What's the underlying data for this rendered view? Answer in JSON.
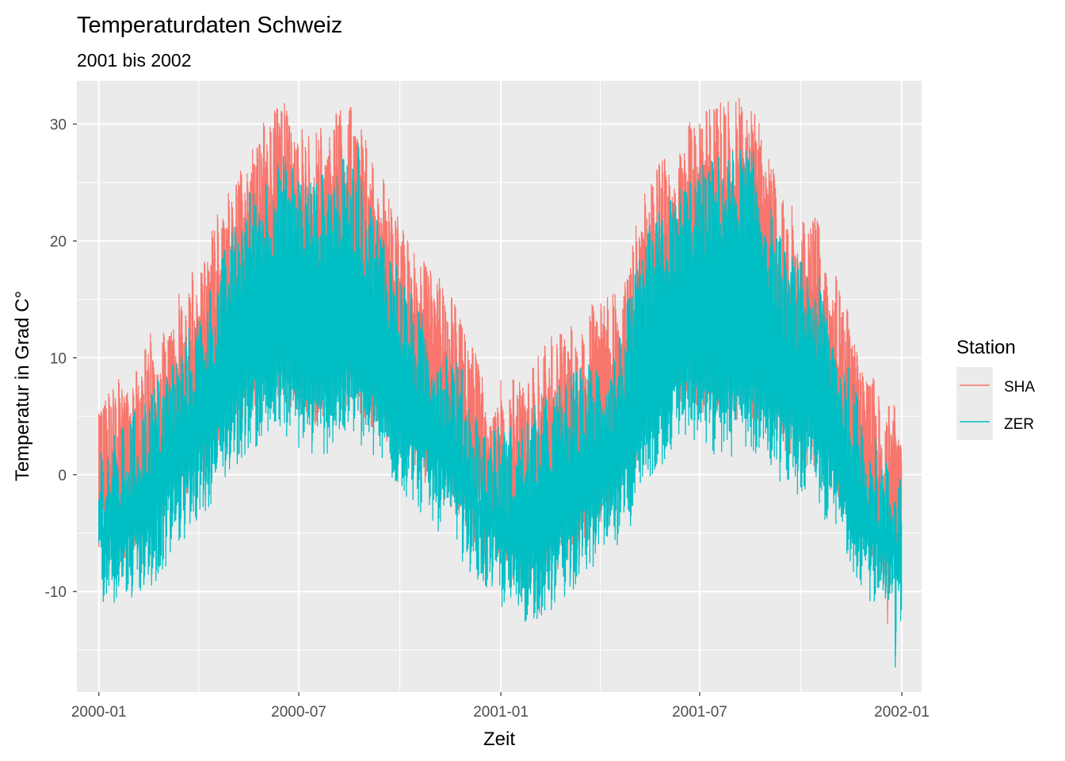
{
  "chart_data": {
    "type": "line",
    "title": "Temperaturdaten Schweiz",
    "subtitle": "2001 bis 2002",
    "xlabel": "Zeit",
    "ylabel": "Temperatur in Grad C°",
    "x_ticks": [
      "2000-01",
      "2000-07",
      "2001-01",
      "2001-07",
      "2002-01"
    ],
    "xlim": [
      "1999-12-12",
      "2002-01-19"
    ],
    "y_ticks": [
      -10,
      0,
      10,
      20,
      30
    ],
    "ylim": [
      -18.6,
      33.7
    ],
    "grid": true,
    "legend": {
      "title": "Station",
      "position": "right"
    },
    "x_start": "2000-01-01",
    "x_end": "2001-12-31",
    "resolution": "hourly (dense lines), summarized as daily envelope",
    "series": [
      {
        "name": "SHA",
        "color": "#F8766D",
        "monthly_typical_max": {
          "months": [
            "2000-01",
            "2000-02",
            "2000-03",
            "2000-04",
            "2000-05",
            "2000-06",
            "2000-07",
            "2000-08",
            "2000-09",
            "2000-10",
            "2000-11",
            "2000-12",
            "2001-01",
            "2001-02",
            "2001-03",
            "2001-04",
            "2001-05",
            "2001-06",
            "2001-07",
            "2001-08",
            "2001-09",
            "2001-10",
            "2001-11",
            "2001-12"
          ],
          "values": [
            4,
            8,
            12,
            18,
            25,
            28,
            26,
            28,
            22,
            15,
            12,
            5,
            5,
            8,
            10,
            12,
            22,
            26,
            28,
            29,
            20,
            18,
            9,
            2
          ]
        },
        "peaks": {
          "max": 31.5,
          "max_date": "2001-08-08",
          "min": -12.8,
          "min_date": "2001-12-19"
        }
      },
      {
        "name": "ZER",
        "color": "#00BFC4",
        "monthly_typical_min": {
          "months": [
            "2000-01",
            "2000-02",
            "2000-03",
            "2000-04",
            "2000-05",
            "2000-06",
            "2000-07",
            "2000-08",
            "2000-09",
            "2000-10",
            "2000-11",
            "2000-12",
            "2001-01",
            "2001-02",
            "2001-03",
            "2001-04",
            "2001-05",
            "2001-06",
            "2001-07",
            "2001-08",
            "2001-09",
            "2001-10",
            "2001-11",
            "2001-12"
          ],
          "values": [
            -8,
            -7,
            -3,
            1,
            5,
            6,
            4,
            6,
            3,
            0,
            -3,
            -7,
            -10,
            -9,
            -6,
            -4,
            2,
            6,
            4,
            5,
            2,
            0,
            -5,
            -10
          ]
        },
        "peaks": {
          "max": 28.3,
          "max_date": "2000-08-24",
          "min": -16.5,
          "min_date": "2001-12-26"
        }
      }
    ]
  }
}
